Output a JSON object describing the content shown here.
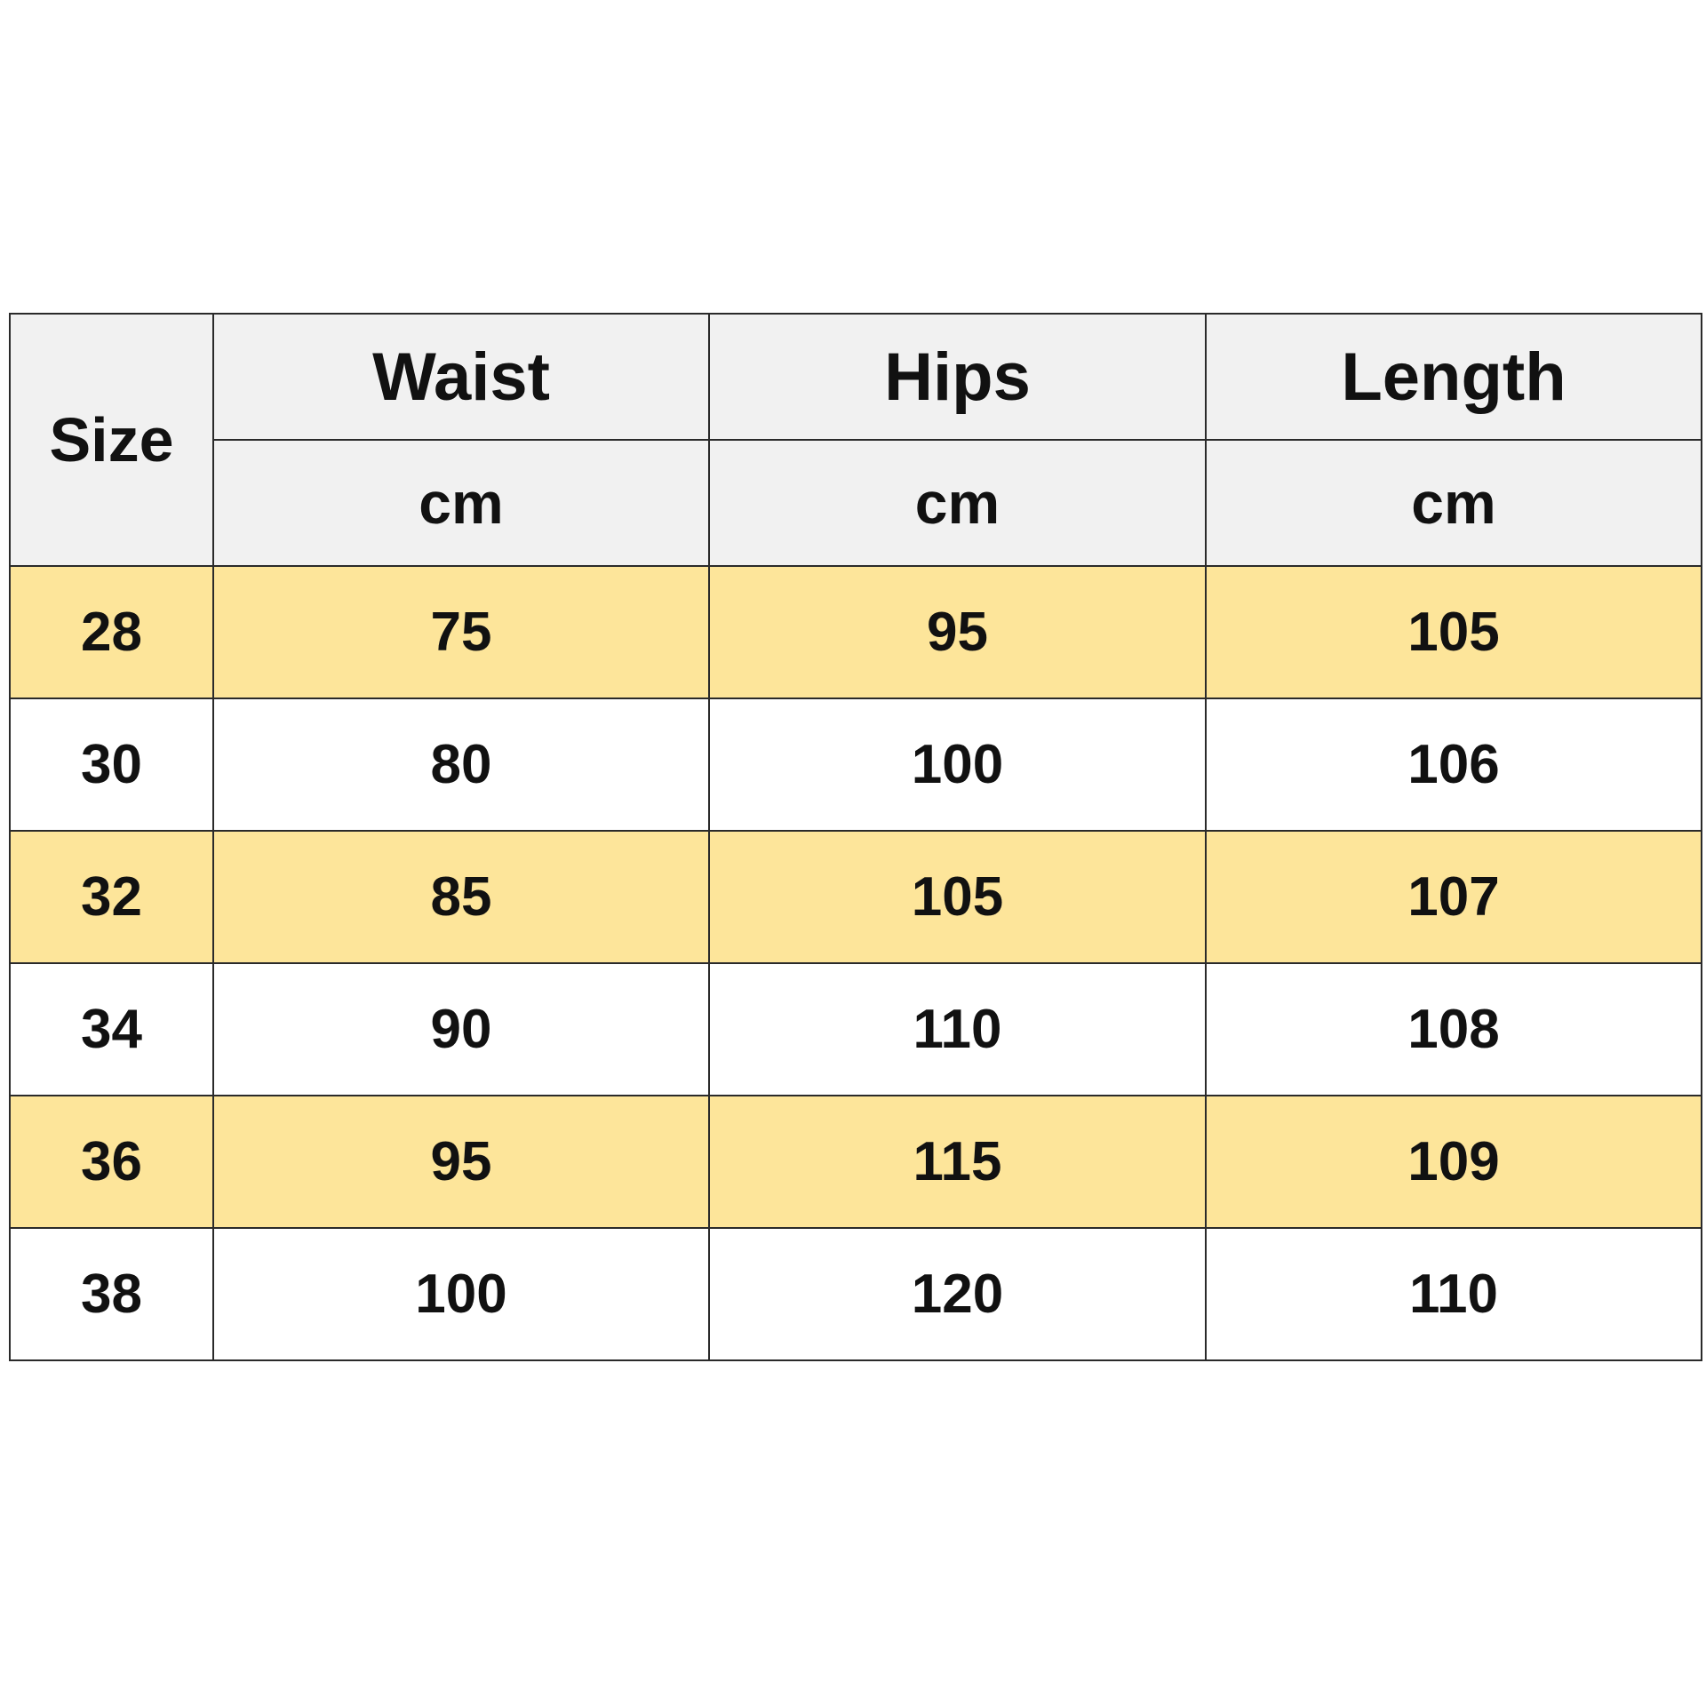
{
  "table": {
    "size_header": "Size",
    "columns": [
      {
        "label": "Waist",
        "unit": "cm"
      },
      {
        "label": "Hips",
        "unit": "cm"
      },
      {
        "label": "Length",
        "unit": "cm"
      }
    ],
    "rows": [
      {
        "size": "28",
        "values": [
          "75",
          "95",
          "105"
        ]
      },
      {
        "size": "30",
        "values": [
          "80",
          "100",
          "106"
        ]
      },
      {
        "size": "32",
        "values": [
          "85",
          "105",
          "107"
        ]
      },
      {
        "size": "34",
        "values": [
          "90",
          "110",
          "108"
        ]
      },
      {
        "size": "36",
        "values": [
          "95",
          "115",
          "109"
        ]
      },
      {
        "size": "38",
        "values": [
          "100",
          "120",
          "110"
        ]
      }
    ],
    "colors": {
      "header_bg": "#f1f1f1",
      "highlight_row_bg": "#fde59a",
      "plain_row_bg": "#ffffff"
    }
  }
}
